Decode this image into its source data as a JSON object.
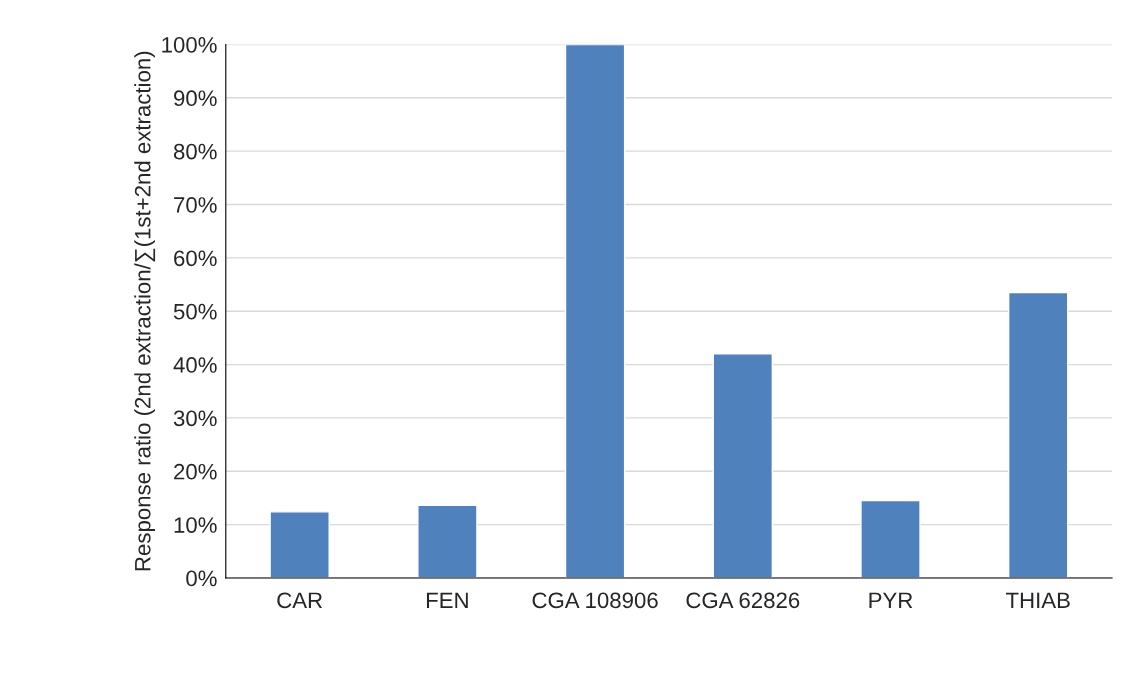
{
  "chart_data": {
    "type": "bar",
    "ylabel": "Response ratio (2nd extraction/∑(1st+2nd extraction)",
    "categories": [
      "CAR",
      "FEN",
      "CGA 108906",
      "CGA 62826",
      "PYR",
      "THIAB"
    ],
    "values": [
      12.4,
      13.6,
      100,
      42.0,
      14.5,
      53.5
    ],
    "color": "#4f81bd",
    "ylim": [
      0,
      100
    ],
    "yticks": [
      {
        "value": 0,
        "label": "0%"
      },
      {
        "value": 10,
        "label": "10%"
      },
      {
        "value": 20,
        "label": "20%"
      },
      {
        "value": 30,
        "label": "30%"
      },
      {
        "value": 40,
        "label": "40%"
      },
      {
        "value": 50,
        "label": "50%"
      },
      {
        "value": 60,
        "label": "60%"
      },
      {
        "value": 70,
        "label": "70%"
      },
      {
        "value": 80,
        "label": "80%"
      },
      {
        "value": 90,
        "label": "90%"
      },
      {
        "value": 100,
        "label": "100%"
      }
    ],
    "grid": "y"
  }
}
